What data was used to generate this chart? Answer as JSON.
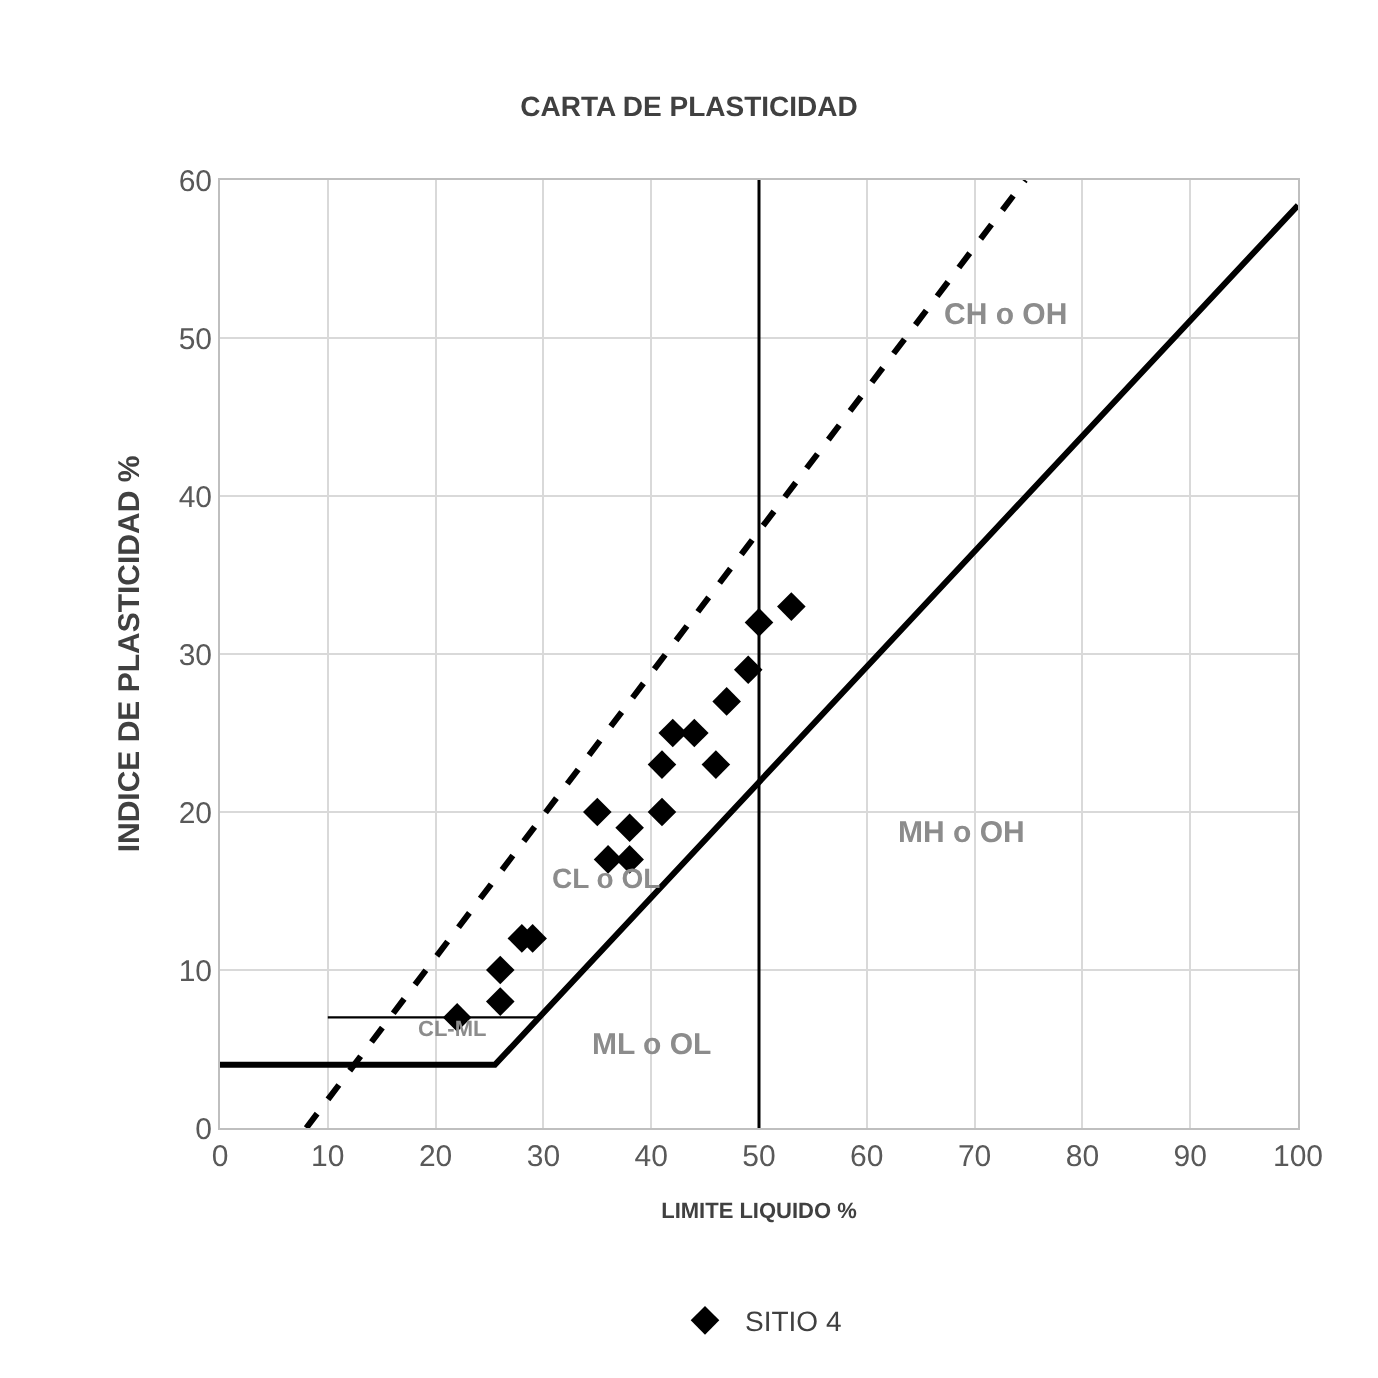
{
  "chart_data": {
    "type": "scatter",
    "title": "CARTA DE PLASTICIDAD",
    "xlabel": "LIMITE LIQUIDO %",
    "ylabel": "INDICE DE PLASTICIDAD %",
    "xlim": [
      0,
      100
    ],
    "ylim": [
      0,
      60
    ],
    "xticks": [
      0,
      10,
      20,
      30,
      40,
      50,
      60,
      70,
      80,
      90,
      100
    ],
    "yticks": [
      0,
      10,
      20,
      30,
      40,
      50,
      60
    ],
    "grid": true,
    "legend": "bottom",
    "series": [
      {
        "type": "line",
        "color": "#000000",
        "x": [
          0,
          25.5,
          100
        ],
        "values": [
          4,
          4,
          58.4
        ],
        "line_style": "solid"
      },
      {
        "type": "line",
        "color": "#000000",
        "x": [
          8,
          74.7
        ],
        "values": [
          0,
          60
        ],
        "line_style": "dashed"
      },
      {
        "type": "line",
        "color": "#000000",
        "x": [
          10,
          29.6
        ],
        "values": [
          7,
          7
        ],
        "line_style": "solid"
      },
      {
        "name": "SITIO 4",
        "color": "#000000",
        "marker": "diamond",
        "x": [
          22,
          26,
          26,
          28,
          29,
          36,
          38,
          35,
          38,
          41,
          41,
          42,
          44,
          46,
          47,
          49,
          50,
          53
        ],
        "values": [
          7,
          8,
          10,
          12,
          12,
          17,
          17,
          20,
          19,
          20,
          23,
          25,
          25,
          23,
          27,
          29,
          32,
          33
        ]
      }
    ],
    "ref_lines": [
      {
        "axis": "x",
        "value": 50,
        "color": "#000000"
      }
    ],
    "annotations": [
      "CL o OL",
      "CL-ML",
      "ML o OL",
      "MH o OH",
      "CH o OH"
    ]
  }
}
